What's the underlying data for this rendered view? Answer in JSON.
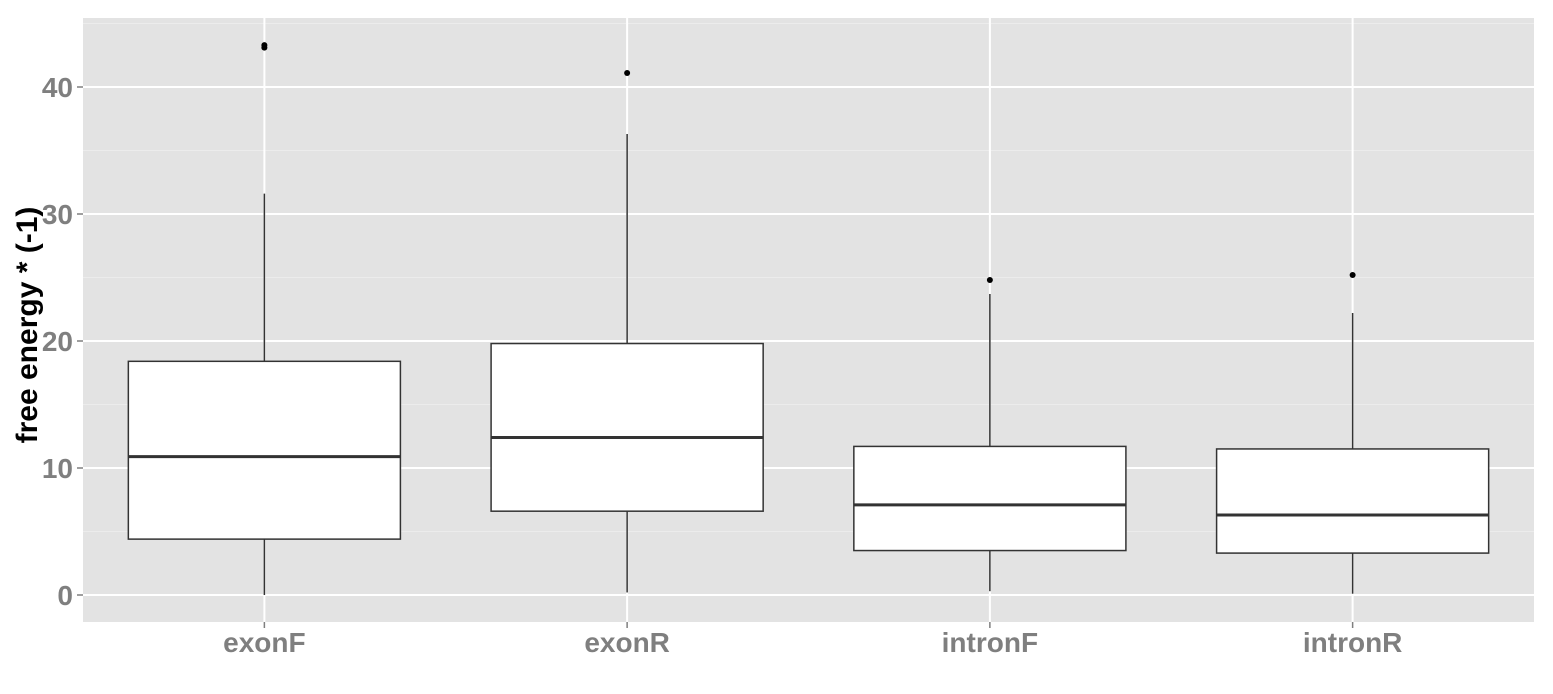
{
  "chart_data": {
    "type": "box",
    "title": "",
    "xlabel": "",
    "ylabel": "free energy * (-1)",
    "ylim": [
      -2,
      45
    ],
    "yticks": [
      0,
      10,
      20,
      30,
      40
    ],
    "grid": true,
    "legend": "none",
    "colors": {
      "panel": "#e3e3e3",
      "grid_major": "#ffffff",
      "box_fill": "#ffffff",
      "box_stroke": "#333333",
      "outlier": "#000000",
      "tick_label": "#7f7f7f"
    },
    "categories": [
      "exonF",
      "exonR",
      "intronF",
      "intronR"
    ],
    "boxes": [
      {
        "category": "exonF",
        "whisker_low": 0.0,
        "q1": 4.4,
        "median": 10.9,
        "q3": 18.4,
        "whisker_high": 31.6,
        "outliers": [
          43.1,
          43.3
        ]
      },
      {
        "category": "exonR",
        "whisker_low": 0.2,
        "q1": 6.6,
        "median": 12.4,
        "q3": 19.8,
        "whisker_high": 36.3,
        "outliers": [
          41.1
        ]
      },
      {
        "category": "intronF",
        "whisker_low": 0.3,
        "q1": 3.5,
        "median": 7.1,
        "q3": 11.7,
        "whisker_high": 23.7,
        "outliers": [
          24.8
        ]
      },
      {
        "category": "intronR",
        "whisker_low": 0.1,
        "q1": 3.3,
        "median": 6.3,
        "q3": 11.5,
        "whisker_high": 22.2,
        "outliers": [
          25.2
        ]
      }
    ]
  }
}
